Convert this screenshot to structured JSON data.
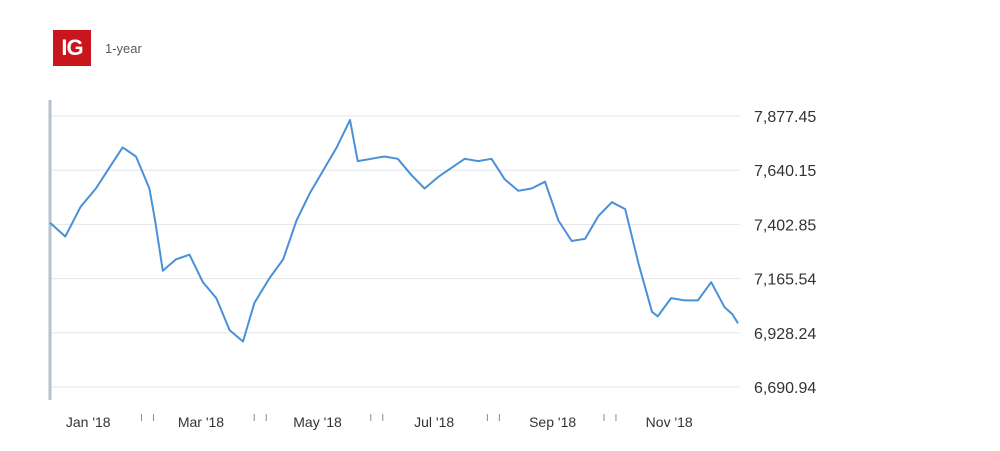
{
  "header": {
    "logo_text": "IG",
    "range_label": "1-year"
  },
  "colors": {
    "brand": "#c8161d",
    "line": "#4a90d9",
    "axis": "#b8c2cc",
    "grid": "#e3e6ea"
  },
  "chart_data": {
    "type": "line",
    "ylim": [
      6690.94,
      7877.45
    ],
    "y_ticks": [
      "7,877.45",
      "7,640.15",
      "7,402.85",
      "7,165.54",
      "6,928.24",
      "6,690.94"
    ],
    "y_tick_values": [
      7877.45,
      7640.15,
      7402.85,
      7165.54,
      6928.24,
      6690.94
    ],
    "x_labels": [
      "Jan '18",
      "Mar '18",
      "May '18",
      "Jul '18",
      "Sep '18",
      "Nov '18"
    ],
    "x_label_dates": [
      "2018-01-01",
      "2018-03-01",
      "2018-05-01",
      "2018-07-01",
      "2018-09-01",
      "2018-11-01"
    ],
    "x_minor_tick_dates": [
      "2018-02-01",
      "2018-04-01",
      "2018-06-01",
      "2018-08-01",
      "2018-10-01"
    ],
    "grid": true,
    "series": [
      {
        "x": [
          "2017-12-12",
          "2017-12-20",
          "2017-12-28",
          "2018-01-05",
          "2018-01-12",
          "2018-01-19",
          "2018-01-26",
          "2018-02-02",
          "2018-02-05",
          "2018-02-09",
          "2018-02-16",
          "2018-02-23",
          "2018-03-02",
          "2018-03-09",
          "2018-03-16",
          "2018-03-23",
          "2018-03-29",
          "2018-04-06",
          "2018-04-13",
          "2018-04-20",
          "2018-04-27",
          "2018-05-04",
          "2018-05-11",
          "2018-05-18",
          "2018-05-22",
          "2018-05-29",
          "2018-06-05",
          "2018-06-12",
          "2018-06-19",
          "2018-06-26",
          "2018-07-03",
          "2018-07-10",
          "2018-07-17",
          "2018-07-24",
          "2018-07-31",
          "2018-08-07",
          "2018-08-14",
          "2018-08-21",
          "2018-08-28",
          "2018-09-04",
          "2018-09-11",
          "2018-09-18",
          "2018-09-25",
          "2018-10-02",
          "2018-10-09",
          "2018-10-16",
          "2018-10-23",
          "2018-10-26",
          "2018-11-02",
          "2018-11-09",
          "2018-11-16",
          "2018-11-23",
          "2018-11-30",
          "2018-12-04",
          "2018-12-07"
        ],
        "y": [
          7410,
          7350,
          7480,
          7560,
          7650,
          7740,
          7700,
          7560,
          7420,
          7200,
          7250,
          7270,
          7150,
          7080,
          6940,
          6890,
          7060,
          7170,
          7250,
          7420,
          7540,
          7640,
          7740,
          7860,
          7680,
          7690,
          7700,
          7690,
          7620,
          7560,
          7610,
          7650,
          7690,
          7680,
          7690,
          7600,
          7550,
          7560,
          7590,
          7420,
          7330,
          7340,
          7440,
          7500,
          7470,
          7230,
          7020,
          7000,
          7080,
          7070,
          7070,
          7150,
          7040,
          7010,
          6970
        ]
      }
    ]
  }
}
